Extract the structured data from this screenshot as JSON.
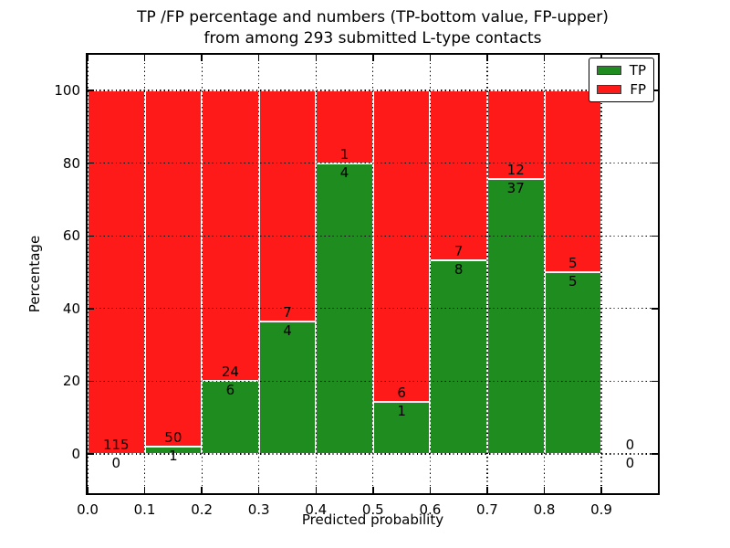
{
  "figure": {
    "title_lines": [
      "TP /FP percentage and numbers (TP-bottom value, FP-upper)",
      "from among 293 submitted L-type contacts"
    ]
  },
  "chart_data": {
    "type": "bar",
    "variant": "stacked-percentage",
    "title": "TP /FP percentage and numbers (TP-bottom value, FP-upper)\nfrom among 293 submitted L-type contacts",
    "xlabel": "Predicted probability",
    "ylabel": "Percentage",
    "total_contacts": 293,
    "bin_width": 0.1,
    "bin_starts": [
      0.0,
      0.1,
      0.2,
      0.3,
      0.4,
      0.5,
      0.6,
      0.7,
      0.8,
      0.9
    ],
    "series": [
      {
        "name": "TP",
        "color": "#1e8c1e",
        "counts": [
          0,
          1,
          6,
          4,
          4,
          1,
          8,
          37,
          5,
          0
        ]
      },
      {
        "name": "FP",
        "color": "#ff1a1a",
        "counts": [
          115,
          50,
          24,
          7,
          1,
          6,
          7,
          12,
          5,
          0
        ]
      }
    ],
    "tp_percent_by_bin": [
      0.0,
      2.0,
      20.0,
      36.4,
      80.0,
      14.3,
      53.3,
      75.5,
      50.0,
      null
    ],
    "annotation_rule": "FP count above TP/FP boundary, TP count below boundary",
    "xticks": [
      "0.0",
      "0.1",
      "0.2",
      "0.3",
      "0.4",
      "0.5",
      "0.6",
      "0.7",
      "0.8",
      "0.9"
    ],
    "xtick_values": [
      0.0,
      0.1,
      0.2,
      0.3,
      0.4,
      0.5,
      0.6,
      0.7,
      0.8,
      0.9
    ],
    "yticks": [
      0,
      20,
      40,
      60,
      80,
      100
    ],
    "xlim": [
      0.0,
      0.999
    ],
    "ylim": [
      -10.8,
      109.8
    ],
    "grid": "dotted-black",
    "bar_edge_color": "#ffffff",
    "legend": {
      "position": "upper-right",
      "entries": [
        "TP",
        "FP"
      ]
    }
  }
}
